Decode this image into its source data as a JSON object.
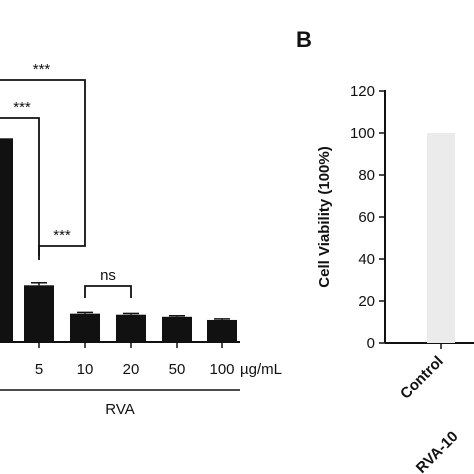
{
  "chart_data": [
    {
      "panel": "",
      "type": "bar",
      "categories": [
        "",
        "5",
        "10",
        "20",
        "50",
        "100"
      ],
      "unit_label": "µg/mL",
      "group_label": "RVA",
      "values": [
        97,
        27,
        13.5,
        13,
        12,
        10.5
      ],
      "errors": [
        0,
        1.2,
        0.6,
        0.6,
        0.5,
        0.5
      ],
      "ylim": [
        0,
        110
      ],
      "bar_color": "#111111",
      "significance": [
        {
          "label": "***",
          "from": 0,
          "to": 2
        },
        {
          "label": "***",
          "from": 0,
          "to": 1
        },
        {
          "label": "***",
          "from": 1,
          "to": 2
        },
        {
          "label": "ns",
          "from": 2,
          "to": 3
        }
      ]
    },
    {
      "panel": "B",
      "type": "bar",
      "categories": [
        "Control",
        "RVA-10"
      ],
      "values": [
        100,
        0
      ],
      "ylabel": "Cell Viability (100%)",
      "ylim": [
        0,
        120
      ],
      "yticks": [
        0,
        20,
        40,
        60,
        80,
        100,
        120
      ],
      "bar_color": "#ebebeb"
    }
  ]
}
